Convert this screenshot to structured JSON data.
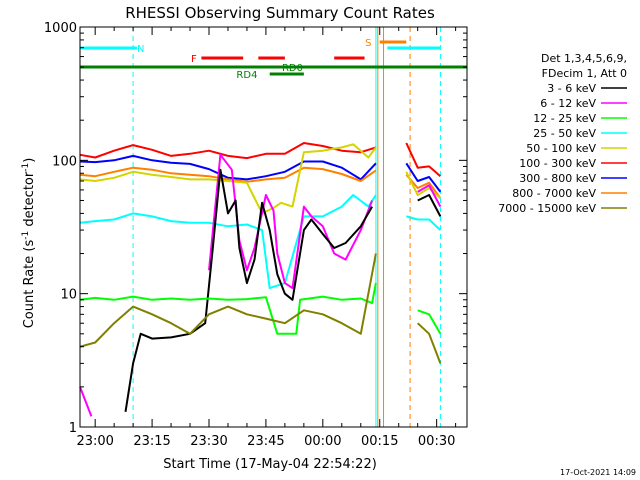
{
  "chart_data": {
    "type": "line",
    "title": "RHESSI Observing Summary Count Rates",
    "xlabel": "Start Time (17-May-04 22:54:22)",
    "ylabel_main": "Count Rate (s",
    "ylabel_sup1": "-1",
    "ylabel_mid": " detector",
    "ylabel_sup2": "-1",
    "ylabel_end": ")",
    "x_range_min": [
      -4,
      98
    ],
    "y_range": [
      1,
      1000
    ],
    "y_scale": "log",
    "y_ticks": [
      {
        "value": 1,
        "label": "1"
      },
      {
        "value": 10,
        "label": "10"
      },
      {
        "value": 100,
        "label": "100"
      },
      {
        "value": 1000,
        "label": "1000"
      }
    ],
    "x_ticks": [
      {
        "min": 0,
        "label": "23:00"
      },
      {
        "min": 15,
        "label": "23:15"
      },
      {
        "min": 30,
        "label": "23:30"
      },
      {
        "min": 45,
        "label": "23:45"
      },
      {
        "min": 60,
        "label": "00:00"
      },
      {
        "min": 75,
        "label": "00:15"
      },
      {
        "min": 90,
        "label": "00:30"
      }
    ],
    "legend": {
      "header1": "Det 1,3,4,5,6,9,",
      "header2": "FDecim 1, Att 0",
      "entries": [
        {
          "label": "3 - 6 keV",
          "color": "#000000"
        },
        {
          "label": "6 - 12 keV",
          "color": "#ff00ff"
        },
        {
          "label": "12 - 25 keV",
          "color": "#00ff00"
        },
        {
          "label": "25 - 50 keV",
          "color": "#00ffff"
        },
        {
          "label": "50 - 100 keV",
          "color": "#d4d400"
        },
        {
          "label": "100 - 300 keV",
          "color": "#ff0000"
        },
        {
          "label": "300 - 800 keV",
          "color": "#0000ff"
        },
        {
          "label": "800 - 7000 keV",
          "color": "#ff8000"
        },
        {
          "label": "7000 - 15000 keV",
          "color": "#808000"
        }
      ]
    },
    "flags": [
      {
        "name": "N",
        "label": "N",
        "color": "#00ffff",
        "segments": [
          [
            -4,
            11
          ]
        ],
        "label_at": 12
      },
      {
        "name": "N",
        "label": "",
        "color": "#00ffff",
        "segments": [
          [
            77,
            91
          ]
        ]
      },
      {
        "name": "F",
        "label": "F",
        "color": "#ff0000",
        "segments": [
          [
            28,
            39
          ],
          [
            43,
            50
          ],
          [
            63,
            71
          ]
        ],
        "label_at": 26
      },
      {
        "name": "S",
        "label": "S",
        "color": "#ff8000",
        "segments": [
          [
            75,
            82
          ]
        ],
        "label_at": 72
      },
      {
        "name": "RD0",
        "label": "RD0",
        "color": "#008000",
        "segments": [
          [
            -4,
            98
          ]
        ],
        "label_at": 52
      },
      {
        "name": "RD4",
        "label": "RD4",
        "color": "#008000",
        "segments": [
          [
            46,
            55
          ]
        ],
        "label_at": 40
      }
    ],
    "vlines": [
      {
        "min": 10,
        "color": "#00ffff",
        "dash": true
      },
      {
        "min": 74,
        "color": "#00ffff",
        "dash": false
      },
      {
        "min": 74.5,
        "color": "#ff8000",
        "dash": false
      },
      {
        "min": 76,
        "color": "#ff8000",
        "dash": false
      },
      {
        "min": 83,
        "color": "#ff8000",
        "dash": true
      },
      {
        "min": 91,
        "color": "#00ffff",
        "dash": true
      }
    ],
    "series": [
      {
        "color": "#ff0000",
        "points": [
          [
            -4,
            110
          ],
          [
            0,
            105
          ],
          [
            5,
            118
          ],
          [
            10,
            130
          ],
          [
            15,
            120
          ],
          [
            20,
            108
          ],
          [
            25,
            112
          ],
          [
            30,
            118
          ],
          [
            35,
            108
          ],
          [
            40,
            104
          ],
          [
            45,
            112
          ],
          [
            50,
            112
          ],
          [
            55,
            135
          ],
          [
            60,
            128
          ],
          [
            65,
            118
          ],
          [
            70,
            115
          ],
          [
            74,
            125
          ],
          [
            76,
            null
          ],
          [
            80,
            null
          ],
          [
            82,
            135
          ],
          [
            85,
            88
          ],
          [
            88,
            90
          ],
          [
            91,
            76
          ]
        ]
      },
      {
        "color": "#0000ff",
        "points": [
          [
            -4,
            98
          ],
          [
            0,
            97
          ],
          [
            5,
            100
          ],
          [
            10,
            108
          ],
          [
            15,
            100
          ],
          [
            20,
            96
          ],
          [
            25,
            94
          ],
          [
            30,
            86
          ],
          [
            35,
            74
          ],
          [
            40,
            72
          ],
          [
            45,
            76
          ],
          [
            50,
            82
          ],
          [
            55,
            98
          ],
          [
            60,
            98
          ],
          [
            65,
            88
          ],
          [
            70,
            72
          ],
          [
            74,
            95
          ],
          [
            76,
            null
          ],
          [
            80,
            null
          ],
          [
            82,
            95
          ],
          [
            85,
            70
          ],
          [
            88,
            75
          ],
          [
            91,
            58
          ]
        ]
      },
      {
        "color": "#ff8000",
        "points": [
          [
            -4,
            78
          ],
          [
            0,
            76
          ],
          [
            5,
            82
          ],
          [
            10,
            88
          ],
          [
            15,
            85
          ],
          [
            20,
            80
          ],
          [
            25,
            78
          ],
          [
            30,
            76
          ],
          [
            35,
            72
          ],
          [
            40,
            69
          ],
          [
            45,
            72
          ],
          [
            50,
            74
          ],
          [
            55,
            88
          ],
          [
            60,
            86
          ],
          [
            65,
            79
          ],
          [
            70,
            70
          ],
          [
            74,
            84
          ],
          [
            76,
            null
          ],
          [
            80,
            null
          ],
          [
            82,
            78
          ],
          [
            85,
            62
          ],
          [
            88,
            68
          ],
          [
            91,
            52
          ]
        ]
      },
      {
        "color": "#d4d400",
        "points": [
          [
            -4,
            72
          ],
          [
            0,
            70
          ],
          [
            5,
            74
          ],
          [
            10,
            82
          ],
          [
            15,
            78
          ],
          [
            20,
            75
          ],
          [
            25,
            72
          ],
          [
            30,
            72
          ],
          [
            35,
            70
          ],
          [
            40,
            68
          ],
          [
            44,
            40
          ],
          [
            47,
            44
          ],
          [
            49,
            48
          ],
          [
            52,
            45
          ],
          [
            55,
            115
          ],
          [
            60,
            118
          ],
          [
            65,
            125
          ],
          [
            68,
            132
          ],
          [
            72,
            105
          ],
          [
            74,
            125
          ],
          [
            76,
            null
          ],
          [
            80,
            null
          ],
          [
            82,
            82
          ],
          [
            85,
            55
          ],
          [
            88,
            62
          ],
          [
            91,
            52
          ]
        ]
      },
      {
        "color": "#00ffff",
        "points": [
          [
            -4,
            34
          ],
          [
            0,
            35
          ],
          [
            5,
            36
          ],
          [
            10,
            40
          ],
          [
            15,
            38
          ],
          [
            20,
            35
          ],
          [
            25,
            34
          ],
          [
            30,
            34
          ],
          [
            35,
            32
          ],
          [
            40,
            33
          ],
          [
            44,
            30
          ],
          [
            46,
            11
          ],
          [
            50,
            12
          ],
          [
            55,
            38
          ],
          [
            60,
            38
          ],
          [
            65,
            45
          ],
          [
            68,
            55
          ],
          [
            72,
            45
          ],
          [
            74,
            55
          ],
          [
            76,
            null
          ],
          [
            80,
            null
          ],
          [
            82,
            38
          ],
          [
            85,
            36
          ],
          [
            88,
            36
          ],
          [
            91,
            30
          ]
        ]
      },
      {
        "color": "#ff00ff",
        "points": [
          [
            -4,
            2
          ],
          [
            -1,
            1.2
          ],
          [
            0,
            null
          ],
          [
            25,
            null
          ],
          [
            30,
            15
          ],
          [
            33,
            110
          ],
          [
            36,
            85
          ],
          [
            38,
            25
          ],
          [
            40,
            15
          ],
          [
            42,
            22
          ],
          [
            45,
            55
          ],
          [
            47,
            42
          ],
          [
            48,
            20
          ],
          [
            50,
            12
          ],
          [
            52,
            11
          ],
          [
            55,
            45
          ],
          [
            57,
            38
          ],
          [
            60,
            32
          ],
          [
            63,
            20
          ],
          [
            66,
            18
          ],
          [
            70,
            30
          ],
          [
            73,
            50
          ],
          [
            74,
            null
          ],
          [
            82,
            null
          ],
          [
            85,
            58
          ],
          [
            88,
            65
          ],
          [
            91,
            45
          ]
        ]
      },
      {
        "color": "#000000",
        "points": [
          [
            -4,
            null
          ],
          [
            7,
            null
          ],
          [
            8,
            1.3
          ],
          [
            10,
            3
          ],
          [
            12,
            5
          ],
          [
            15,
            4.6
          ],
          [
            20,
            4.7
          ],
          [
            25,
            5
          ],
          [
            29,
            6
          ],
          [
            31,
            22
          ],
          [
            33,
            85
          ],
          [
            35,
            40
          ],
          [
            37,
            50
          ],
          [
            38,
            22
          ],
          [
            40,
            12
          ],
          [
            42,
            18
          ],
          [
            44,
            48
          ],
          [
            46,
            30
          ],
          [
            48,
            14
          ],
          [
            50,
            10
          ],
          [
            52,
            9
          ],
          [
            55,
            30
          ],
          [
            57,
            36
          ],
          [
            60,
            28
          ],
          [
            63,
            22
          ],
          [
            66,
            24
          ],
          [
            70,
            32
          ],
          [
            73,
            45
          ],
          [
            74,
            null
          ],
          [
            82,
            null
          ],
          [
            85,
            50
          ],
          [
            88,
            55
          ],
          [
            91,
            38
          ]
        ]
      },
      {
        "color": "#00ff00",
        "points": [
          [
            -4,
            9
          ],
          [
            0,
            9.3
          ],
          [
            5,
            9
          ],
          [
            10,
            9.5
          ],
          [
            15,
            9
          ],
          [
            20,
            9.2
          ],
          [
            25,
            9
          ],
          [
            30,
            9.2
          ],
          [
            35,
            9
          ],
          [
            40,
            9.1
          ],
          [
            45,
            9.4
          ],
          [
            48,
            5
          ],
          [
            53,
            5
          ],
          [
            54,
            9
          ],
          [
            60,
            9.5
          ],
          [
            65,
            9
          ],
          [
            70,
            9.2
          ],
          [
            73,
            8.5
          ],
          [
            74,
            12
          ],
          [
            76,
            null
          ],
          [
            82,
            null
          ],
          [
            85,
            7.5
          ],
          [
            88,
            7
          ],
          [
            91,
            5
          ]
        ]
      },
      {
        "color": "#808000",
        "points": [
          [
            -4,
            4
          ],
          [
            0,
            4.3
          ],
          [
            5,
            6
          ],
          [
            10,
            8
          ],
          [
            15,
            7
          ],
          [
            20,
            6
          ],
          [
            25,
            5
          ],
          [
            30,
            7
          ],
          [
            35,
            8
          ],
          [
            40,
            7
          ],
          [
            45,
            6.5
          ],
          [
            50,
            6
          ],
          [
            55,
            7.5
          ],
          [
            60,
            7
          ],
          [
            65,
            6
          ],
          [
            70,
            5
          ],
          [
            74,
            20
          ],
          [
            76,
            null
          ],
          [
            82,
            null
          ],
          [
            85,
            6
          ],
          [
            88,
            5
          ],
          [
            91,
            3
          ]
        ]
      }
    ]
  },
  "footer": {
    "date_stamp": "17-Oct-2021 14:09"
  }
}
